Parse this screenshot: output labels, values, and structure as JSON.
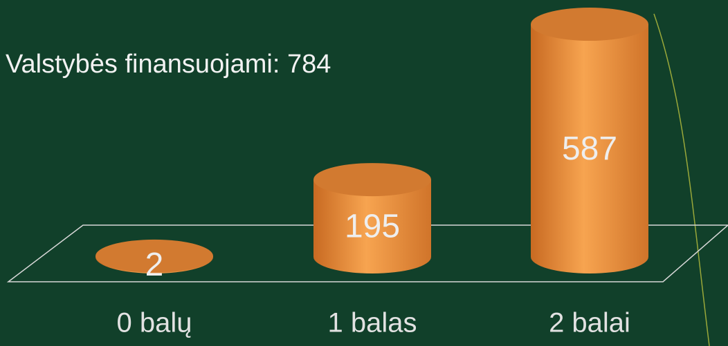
{
  "chart_data": {
    "type": "bar",
    "title": "Valstybės finansuojami: 784",
    "categories": [
      "0 balų",
      "1 balas",
      "2 balai"
    ],
    "values": [
      2,
      195,
      587
    ],
    "color": "#ee9238"
  }
}
